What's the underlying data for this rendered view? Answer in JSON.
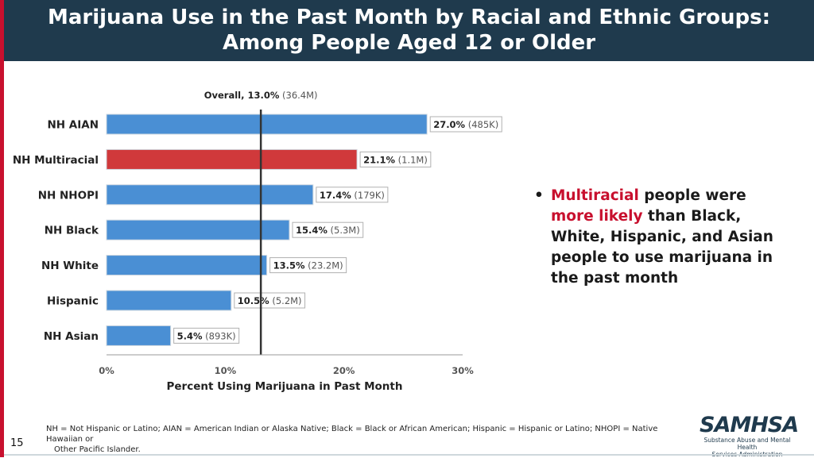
{
  "header": {
    "title_line1": "Marijuana Use in the Past Month by Racial and Ethnic Groups:",
    "title_line2": "Among People Aged 12 or Older"
  },
  "chart_data": {
    "type": "bar",
    "orientation": "horizontal",
    "categories": [
      "NH AIAN",
      "NH Multiracial",
      "NH NHOPI",
      "NH Black",
      "NH White",
      "Hispanic",
      "NH Asian"
    ],
    "values": [
      27.0,
      21.1,
      17.4,
      15.4,
      13.5,
      10.5,
      5.4
    ],
    "value_labels": [
      "27.0%",
      "21.1%",
      "17.4%",
      "15.4%",
      "13.5%",
      "10.5%",
      "5.4%"
    ],
    "count_labels": [
      "(485K)",
      "(1.1M)",
      "(179K)",
      "(5.3M)",
      "(23.2M)",
      "(5.2M)",
      "(893K)"
    ],
    "highlight_index": 1,
    "colors": {
      "bar": "#4a8fd4",
      "highlight": "#d0393b",
      "reference_line": "#333333"
    },
    "reference": {
      "value": 13.0,
      "label_bold": "Overall, 13.0%",
      "label_count": "(36.4M)"
    },
    "xlabel": "Percent Using Marijuana in Past Month",
    "xlim": [
      0,
      30
    ],
    "xticks": [
      0,
      10,
      20,
      30
    ],
    "xtick_labels": [
      "0%",
      "10%",
      "20%",
      "30%"
    ]
  },
  "bullet": {
    "symbol": "•",
    "part1": "Multiracial",
    "part2": " people were ",
    "part3": "more likely",
    "part4": " than Black, White, Hispanic, and Asian people to use marijuana in the past month"
  },
  "footnote": {
    "line1": "NH = Not Hispanic or Latino; AIAN = American Indian or Alaska Native; Black = Black or African American; Hispanic = Hispanic or Latino; NHOPI = Native Hawaiian or",
    "line2": "Other Pacific Islander."
  },
  "page_number": "15",
  "logo": {
    "mark": "SAMHSA",
    "sub_line1": "Substance Abuse and Mental Health",
    "sub_line2": "Services Administration"
  }
}
